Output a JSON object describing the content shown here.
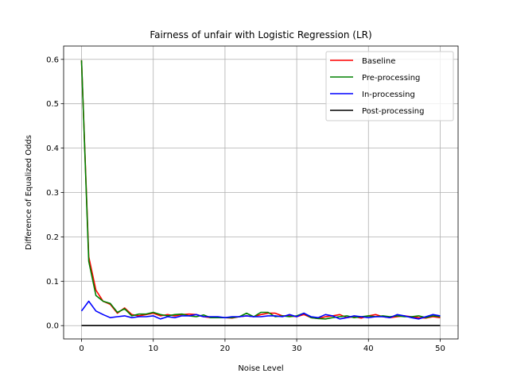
{
  "chart_data": {
    "type": "line",
    "title": "Fairness of unfair with Logistic Regression (LR)",
    "xlabel": "Noise Level",
    "ylabel": "Difference of Equalized Odds",
    "xlim": [
      -2.5,
      52.5
    ],
    "ylim": [
      -0.03,
      0.63
    ],
    "xticks": [
      0,
      10,
      20,
      30,
      40,
      50
    ],
    "yticks": [
      0.0,
      0.1,
      0.2,
      0.3,
      0.4,
      0.5,
      0.6
    ],
    "ytick_labels": [
      "0.0",
      "0.1",
      "0.2",
      "0.3",
      "0.4",
      "0.5",
      "0.6"
    ],
    "grid": true,
    "legend_position": "top-right",
    "x": [
      0,
      1,
      2,
      3,
      4,
      5,
      6,
      7,
      8,
      9,
      10,
      11,
      12,
      13,
      14,
      15,
      16,
      17,
      18,
      19,
      20,
      21,
      22,
      23,
      24,
      25,
      26,
      27,
      28,
      29,
      30,
      31,
      32,
      33,
      34,
      35,
      36,
      37,
      38,
      39,
      40,
      41,
      42,
      43,
      44,
      45,
      46,
      47,
      48,
      49,
      50
    ],
    "series": [
      {
        "name": "Baseline",
        "color": "#ff0000",
        "values": [
          0.598,
          0.155,
          0.08,
          0.055,
          0.048,
          0.028,
          0.04,
          0.025,
          0.022,
          0.025,
          0.028,
          0.022,
          0.025,
          0.022,
          0.025,
          0.026,
          0.025,
          0.02,
          0.018,
          0.018,
          0.018,
          0.017,
          0.02,
          0.022,
          0.02,
          0.025,
          0.028,
          0.028,
          0.022,
          0.022,
          0.02,
          0.025,
          0.018,
          0.016,
          0.02,
          0.022,
          0.025,
          0.018,
          0.02,
          0.017,
          0.022,
          0.025,
          0.02,
          0.018,
          0.02,
          0.022,
          0.02,
          0.018,
          0.017,
          0.02,
          0.018
        ]
      },
      {
        "name": "Pre-processing",
        "color": "#008000",
        "values": [
          0.598,
          0.145,
          0.068,
          0.055,
          0.05,
          0.03,
          0.038,
          0.022,
          0.026,
          0.026,
          0.03,
          0.025,
          0.022,
          0.025,
          0.026,
          0.022,
          0.02,
          0.024,
          0.018,
          0.018,
          0.018,
          0.018,
          0.02,
          0.028,
          0.02,
          0.03,
          0.03,
          0.02,
          0.022,
          0.02,
          0.022,
          0.028,
          0.018,
          0.016,
          0.015,
          0.018,
          0.02,
          0.022,
          0.018,
          0.02,
          0.022,
          0.02,
          0.022,
          0.02,
          0.022,
          0.02,
          0.02,
          0.022,
          0.018,
          0.022,
          0.02
        ]
      },
      {
        "name": "In-processing",
        "color": "#0000ff",
        "values": [
          0.033,
          0.055,
          0.033,
          0.025,
          0.018,
          0.02,
          0.022,
          0.018,
          0.02,
          0.02,
          0.022,
          0.015,
          0.02,
          0.018,
          0.022,
          0.022,
          0.025,
          0.02,
          0.02,
          0.02,
          0.018,
          0.02,
          0.02,
          0.022,
          0.02,
          0.02,
          0.022,
          0.022,
          0.02,
          0.025,
          0.02,
          0.028,
          0.02,
          0.018,
          0.025,
          0.022,
          0.015,
          0.018,
          0.022,
          0.02,
          0.018,
          0.02,
          0.02,
          0.018,
          0.025,
          0.022,
          0.018,
          0.015,
          0.02,
          0.025,
          0.022
        ]
      },
      {
        "name": "Post-processing",
        "color": "#000000",
        "values": [
          0,
          0,
          0,
          0,
          0,
          0,
          0,
          0,
          0,
          0,
          0,
          0,
          0,
          0,
          0,
          0,
          0,
          0,
          0,
          0,
          0,
          0,
          0,
          0,
          0,
          0,
          0,
          0,
          0,
          0,
          0,
          0,
          0,
          0,
          0,
          0,
          0,
          0,
          0,
          0,
          0,
          0,
          0,
          0,
          0,
          0,
          0,
          0,
          0,
          0,
          0
        ]
      }
    ]
  }
}
